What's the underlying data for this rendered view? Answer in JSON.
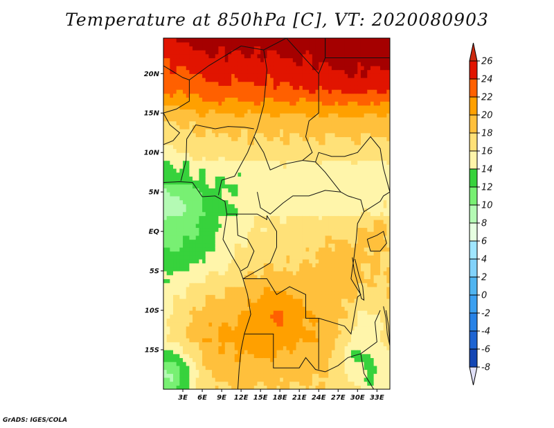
{
  "chart_data": {
    "type": "heatmap",
    "title": "Temperature at 850hPa [C], VT: 2020080903",
    "variable": "Temperature at 850hPa",
    "units": "C",
    "valid_time": "2020080903",
    "xlabel": "",
    "ylabel": "",
    "x_range": [
      0,
      35
    ],
    "y_range": [
      -20,
      24.5
    ],
    "x_ticks": [
      {
        "value": 3,
        "label": "3E"
      },
      {
        "value": 6,
        "label": "6E"
      },
      {
        "value": 9,
        "label": "9E"
      },
      {
        "value": 12,
        "label": "12E"
      },
      {
        "value": 15,
        "label": "15E"
      },
      {
        "value": 18,
        "label": "18E"
      },
      {
        "value": 21,
        "label": "21E"
      },
      {
        "value": 24,
        "label": "24E"
      },
      {
        "value": 27,
        "label": "27E"
      },
      {
        "value": 30,
        "label": "30E"
      },
      {
        "value": 33,
        "label": "33E"
      }
    ],
    "y_ticks": [
      {
        "value": 20,
        "label": "20N"
      },
      {
        "value": 15,
        "label": "15N"
      },
      {
        "value": 10,
        "label": "10N"
      },
      {
        "value": 5,
        "label": "5N"
      },
      {
        "value": 0,
        "label": "EQ"
      },
      {
        "value": -5,
        "label": "5S"
      },
      {
        "value": -10,
        "label": "10S"
      },
      {
        "value": -15,
        "label": "15S"
      }
    ],
    "colorbar": {
      "levels": [
        -8,
        -6,
        -4,
        -2,
        0,
        2,
        4,
        6,
        8,
        10,
        12,
        14,
        16,
        18,
        20,
        22,
        24,
        26
      ],
      "labels": [
        "-8",
        "-6",
        "-4",
        "-2",
        "0",
        "2",
        "4",
        "6",
        "8",
        "10",
        "12",
        "14",
        "16",
        "18",
        "20",
        "22",
        "24",
        "26"
      ],
      "colors": [
        "#0c0c78",
        "#1446b4",
        "#1e64d2",
        "#2882e6",
        "#3ca0f0",
        "#50b4f0",
        "#82d2fa",
        "#a0e6ff",
        "#e6ffe1",
        "#b4fab4",
        "#78f073",
        "#37d23c",
        "#fff5aa",
        "#ffe178",
        "#ffc03c",
        "#ffa000",
        "#ff6000",
        "#e11400",
        "#a50000"
      ],
      "under_color": "#e0e0f8",
      "over_color": "#cc2a10"
    },
    "field_description": "Hot 24-26C over Sahara north of 15N, 16-20C over Sahel, cool 12-14C over Gulf of Guinea coast and Gabon/Congo, 20-22C over Angola/Zambia plateau, 12-14C around Lake Malawi/Mozambique"
  },
  "footer": "GrADS: IGES/COLA"
}
